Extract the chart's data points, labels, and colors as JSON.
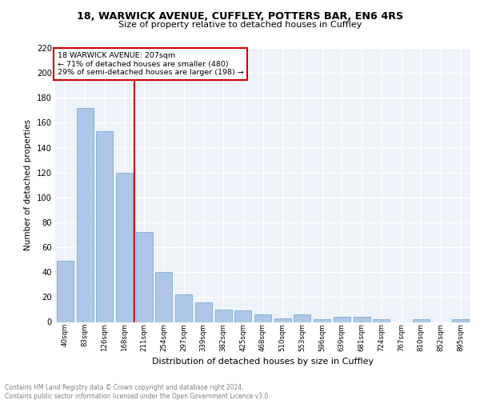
{
  "title1": "18, WARWICK AVENUE, CUFFLEY, POTTERS BAR, EN6 4RS",
  "title2": "Size of property relative to detached houses in Cuffley",
  "xlabel": "Distribution of detached houses by size in Cuffley",
  "ylabel": "Number of detached properties",
  "categories": [
    "40sqm",
    "83sqm",
    "126sqm",
    "168sqm",
    "211sqm",
    "254sqm",
    "297sqm",
    "339sqm",
    "382sqm",
    "425sqm",
    "468sqm",
    "510sqm",
    "553sqm",
    "596sqm",
    "639sqm",
    "681sqm",
    "724sqm",
    "767sqm",
    "810sqm",
    "852sqm",
    "895sqm"
  ],
  "values": [
    49,
    172,
    153,
    120,
    72,
    40,
    22,
    16,
    10,
    9,
    6,
    3,
    6,
    2,
    4,
    4,
    2,
    0,
    2,
    0,
    2
  ],
  "bar_color": "#aec6e8",
  "bar_edgecolor": "#7aafd4",
  "vline_color": "#cc0000",
  "annotation_title": "18 WARWICK AVENUE: 207sqm",
  "annotation_line1": "← 71% of detached houses are smaller (480)",
  "annotation_line2": "29% of semi-detached houses are larger (198) →",
  "ylim": [
    0,
    220
  ],
  "yticks": [
    0,
    20,
    40,
    60,
    80,
    100,
    120,
    140,
    160,
    180,
    200,
    220
  ],
  "footer": "Contains HM Land Registry data © Crown copyright and database right 2024.\nContains public sector information licensed under the Open Government Licence v3.0.",
  "plot_bg": "#eef2f9"
}
